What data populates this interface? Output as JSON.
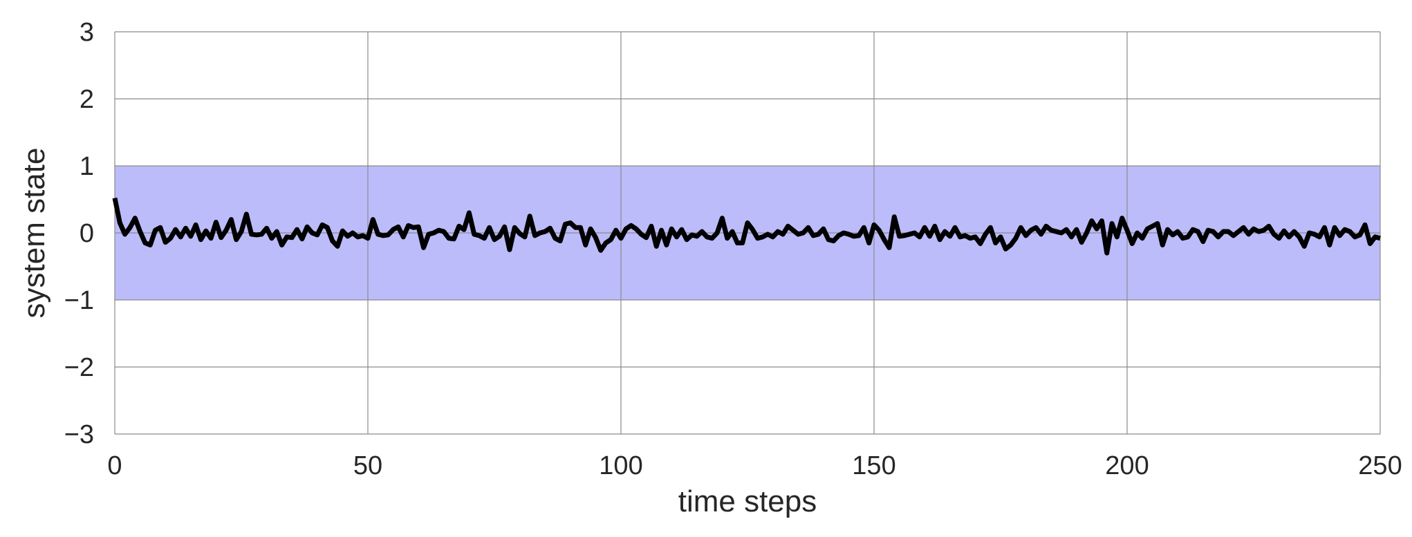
{
  "chart_data": {
    "type": "line",
    "title": "",
    "xlabel": "time steps",
    "ylabel": "system state",
    "xlim": [
      0,
      250
    ],
    "ylim": [
      -3,
      3
    ],
    "xticks": [
      0,
      50,
      100,
      150,
      200,
      250
    ],
    "xtick_labels": [
      "0",
      "50",
      "100",
      "150",
      "200",
      "250"
    ],
    "yticks": [
      3,
      2,
      1,
      0,
      -1,
      -2,
      -3
    ],
    "ytick_labels": [
      "3",
      "2",
      "1",
      "0",
      "−1",
      "−2",
      "−3"
    ],
    "grid": true,
    "legend": "none",
    "band": {
      "y_min": -1,
      "y_max": 1,
      "color": "#bcbcfb"
    },
    "line_color": "#000000",
    "series": [
      {
        "x": [
          0,
          1,
          2,
          3,
          4,
          5,
          6,
          7,
          8,
          9,
          10,
          11,
          12,
          13,
          14,
          15,
          16,
          17,
          18,
          19,
          20,
          21,
          22,
          23,
          24,
          25,
          26,
          27,
          28,
          29,
          30,
          31,
          32,
          33,
          34,
          35,
          36,
          37,
          38,
          39,
          40,
          41,
          42,
          43,
          44,
          45,
          46,
          47,
          48,
          49,
          50,
          51,
          52,
          53,
          54,
          55,
          56,
          57,
          58,
          59,
          60,
          61,
          62,
          63,
          64,
          65,
          66,
          67,
          68,
          69,
          70,
          71,
          72,
          73,
          74,
          75,
          76,
          77,
          78,
          79,
          80,
          81,
          82,
          83,
          84,
          85,
          86,
          87,
          88,
          89,
          90,
          91,
          92,
          93,
          94,
          95,
          96,
          97,
          98,
          99,
          100,
          101,
          102,
          103,
          104,
          105,
          106,
          107,
          108,
          109,
          110,
          111,
          112,
          113,
          114,
          115,
          116,
          117,
          118,
          119,
          120,
          121,
          122,
          123,
          124,
          125,
          126,
          127,
          128,
          129,
          130,
          131,
          132,
          133,
          134,
          135,
          136,
          137,
          138,
          139,
          140,
          141,
          142,
          143,
          144,
          145,
          146,
          147,
          148,
          149,
          150,
          151,
          152,
          153,
          154,
          155,
          156,
          157,
          158,
          159,
          160,
          161,
          162,
          163,
          164,
          165,
          166,
          167,
          168,
          169,
          170,
          171,
          172,
          173,
          174,
          175,
          176,
          177,
          178,
          179,
          180,
          181,
          182,
          183,
          184,
          185,
          186,
          187,
          188,
          189,
          190,
          191,
          192,
          193,
          194,
          195,
          196,
          197,
          198,
          199,
          200,
          201,
          202,
          203,
          204,
          205,
          206,
          207,
          208,
          209,
          210,
          211,
          212,
          213,
          214,
          215,
          216,
          217,
          218,
          219,
          220,
          221,
          222,
          223,
          224,
          225,
          226,
          227,
          228,
          229,
          230,
          231,
          232,
          233,
          234,
          235,
          236,
          237,
          238,
          239,
          240,
          241,
          242,
          243,
          244,
          245,
          246,
          247,
          248,
          249,
          250
        ],
        "y": [
          0.52,
          0.15,
          -0.02,
          0.08,
          0.22,
          0.02,
          -0.15,
          -0.18,
          0.04,
          0.08,
          -0.14,
          -0.08,
          0.05,
          -0.06,
          0.07,
          -0.05,
          0.12,
          -0.1,
          0.03,
          -0.08,
          0.16,
          -0.07,
          0.04,
          0.2,
          -0.1,
          0.02,
          0.28,
          -0.02,
          -0.03,
          -0.02,
          0.07,
          -0.08,
          0.02,
          -0.18,
          -0.06,
          -0.07,
          0.05,
          -0.09,
          0.09,
          0.0,
          -0.03,
          0.12,
          0.08,
          -0.12,
          -0.2,
          0.03,
          -0.05,
          0.0,
          -0.06,
          -0.04,
          -0.08,
          0.2,
          -0.02,
          -0.04,
          -0.03,
          0.05,
          0.09,
          -0.06,
          0.11,
          0.08,
          0.09,
          -0.22,
          -0.02,
          0.0,
          0.04,
          0.02,
          -0.08,
          -0.09,
          0.1,
          0.05,
          0.3,
          -0.02,
          -0.04,
          -0.08,
          0.08,
          -0.1,
          -0.05,
          0.09,
          -0.25,
          0.08,
          -0.01,
          -0.06,
          0.25,
          -0.04,
          0.0,
          0.02,
          0.07,
          -0.08,
          -0.12,
          0.13,
          0.15,
          0.08,
          0.08,
          -0.18,
          0.06,
          -0.07,
          -0.26,
          -0.15,
          -0.1,
          0.04,
          -0.08,
          0.06,
          0.11,
          0.06,
          -0.02,
          -0.07,
          0.1,
          -0.2,
          0.04,
          -0.18,
          0.06,
          -0.06,
          0.05,
          -0.1,
          -0.03,
          -0.05,
          0.02,
          -0.06,
          -0.08,
          0.0,
          0.22,
          -0.08,
          0.02,
          -0.15,
          -0.15,
          0.15,
          0.05,
          -0.08,
          -0.06,
          -0.02,
          -0.06,
          0.02,
          -0.02,
          0.1,
          0.04,
          -0.02,
          0.0,
          0.08,
          -0.04,
          -0.02,
          0.06,
          -0.1,
          -0.12,
          -0.04,
          0.0,
          -0.02,
          -0.05,
          -0.04,
          0.08,
          -0.15,
          0.12,
          0.04,
          -0.1,
          -0.22,
          0.24,
          -0.05,
          -0.04,
          -0.02,
          0.0,
          -0.06,
          0.08,
          -0.05,
          0.1,
          -0.1,
          0.02,
          -0.05,
          0.08,
          -0.06,
          -0.04,
          -0.08,
          -0.06,
          -0.16,
          -0.02,
          0.08,
          -0.15,
          -0.06,
          -0.24,
          -0.18,
          -0.08,
          0.08,
          -0.04,
          0.04,
          0.08,
          -0.02,
          0.1,
          0.04,
          0.02,
          0.0,
          0.05,
          -0.06,
          0.05,
          -0.14,
          0.0,
          0.18,
          0.06,
          0.18,
          -0.3,
          0.14,
          -0.06,
          0.22,
          0.04,
          -0.16,
          0.0,
          -0.08,
          0.06,
          0.1,
          0.14,
          -0.18,
          0.05,
          -0.03,
          0.02,
          -0.08,
          -0.06,
          0.05,
          0.02,
          -0.13,
          0.04,
          0.02,
          -0.06,
          0.02,
          0.02,
          -0.04,
          0.02,
          0.08,
          -0.02,
          0.06,
          0.02,
          0.04,
          0.1,
          -0.02,
          -0.08,
          0.03,
          -0.06,
          0.02,
          -0.06,
          -0.2,
          0.0,
          -0.02,
          -0.06,
          0.08,
          -0.18,
          0.08,
          -0.04,
          0.05,
          0.02,
          -0.06,
          -0.03,
          0.12,
          -0.16,
          -0.06,
          -0.08
        ]
      }
    ]
  }
}
